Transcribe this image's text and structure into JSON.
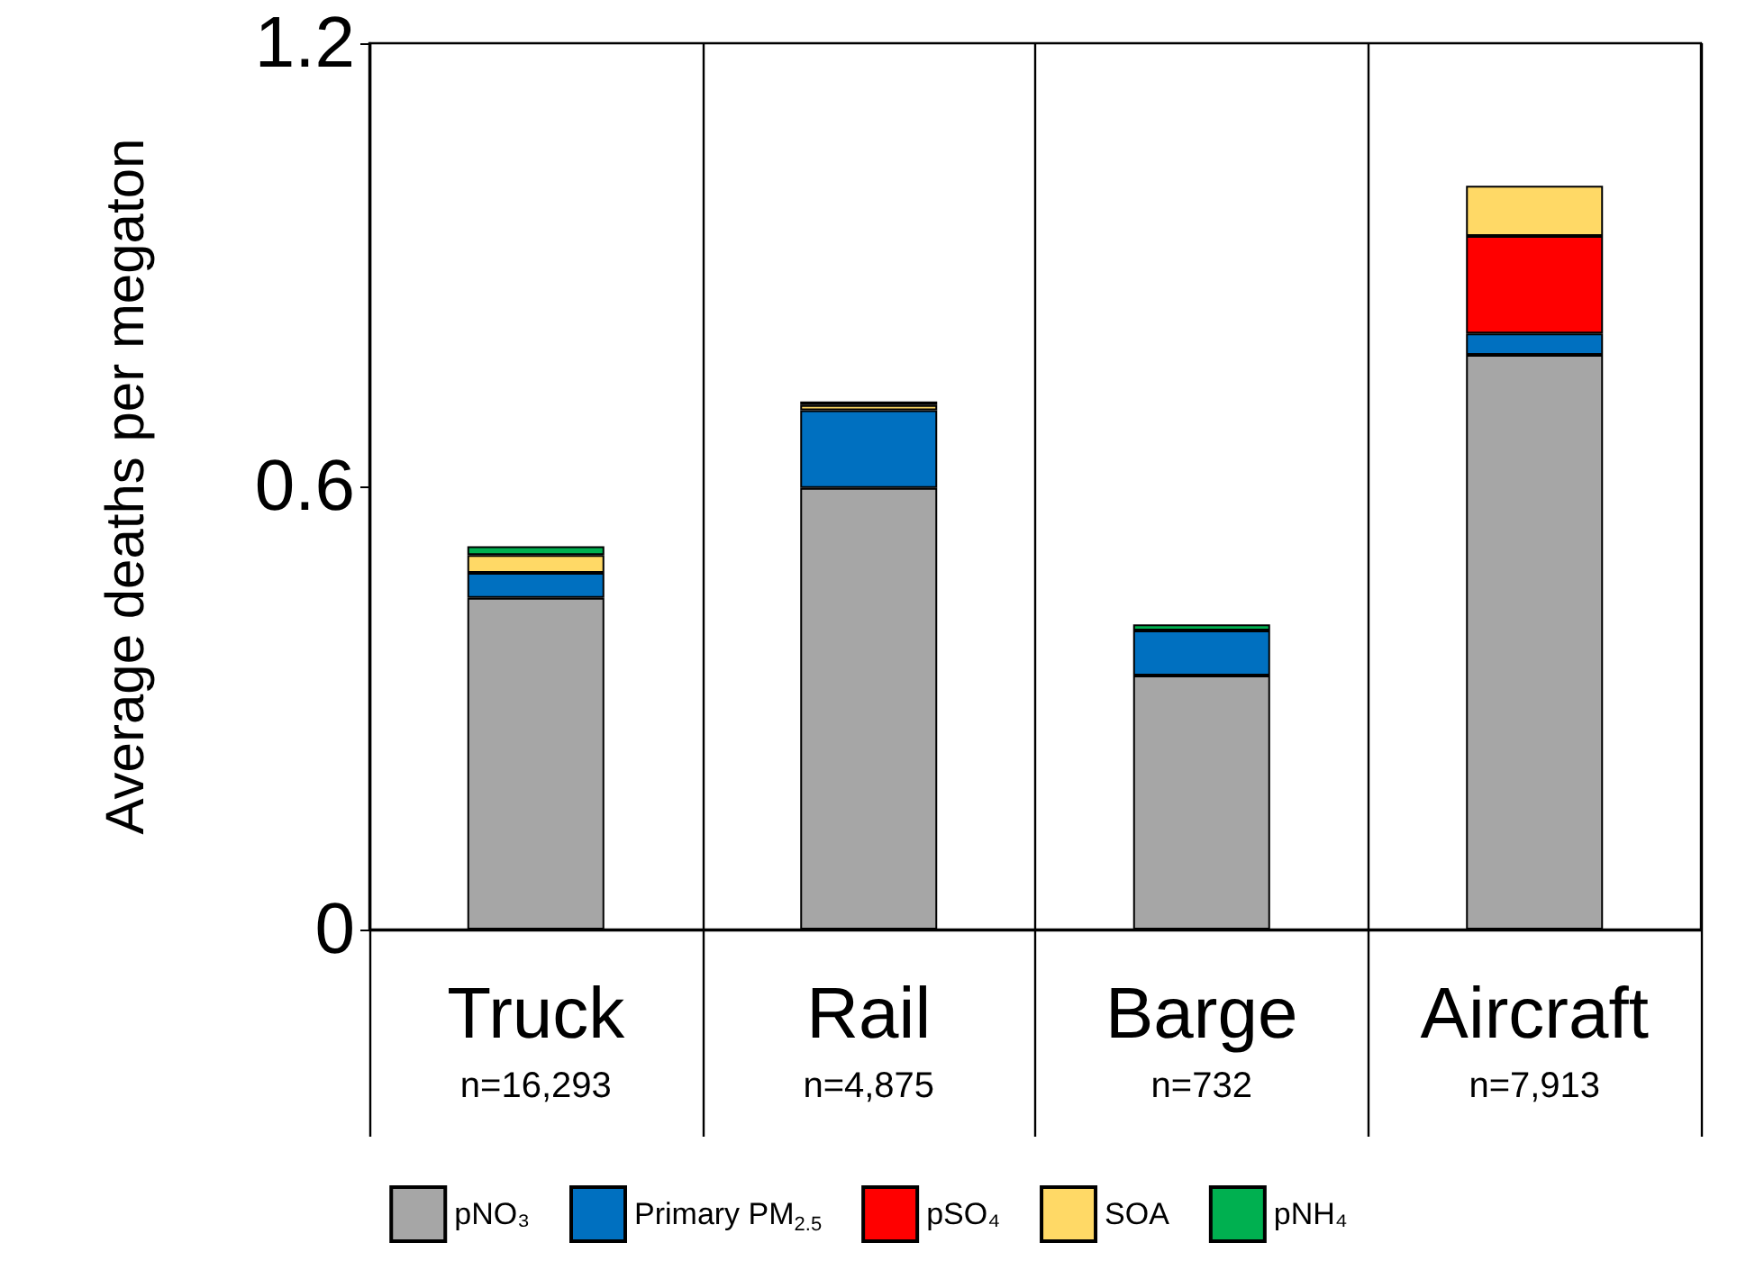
{
  "chart_data": {
    "type": "bar",
    "stacked": true,
    "ylabel": "Average deaths per megaton",
    "categories": [
      "Truck\nn=16,293",
      "Rail\nn=4,875",
      "Barge\nn=732",
      "Aircraft\nn=7,913"
    ],
    "series": [
      {
        "name": "pNO₃",
        "color": "#a6a6a6",
        "values": [
          0.449,
          0.598,
          0.344,
          0.778
        ]
      },
      {
        "name": "Primary PM$_{2.5}$",
        "color": "#0070c0",
        "values": [
          0.034,
          0.105,
          0.061,
          0.029
        ]
      },
      {
        "name": "pSO₄",
        "color": "#ff0000",
        "values": [
          null,
          null,
          null,
          0.132
        ]
      },
      {
        "name": "SOA",
        "color": "#ffd966",
        "values": [
          0.024,
          0.007,
          null,
          0.068
        ]
      },
      {
        "name": "pNH₄",
        "color": "#00b050",
        "values": [
          0.012,
          0.005,
          0.008,
          null
        ]
      }
    ],
    "ylim": [
      0,
      1.2
    ],
    "yticks": [
      0,
      0.6,
      1.2
    ],
    "grid": "x",
    "legend": "bottom"
  }
}
